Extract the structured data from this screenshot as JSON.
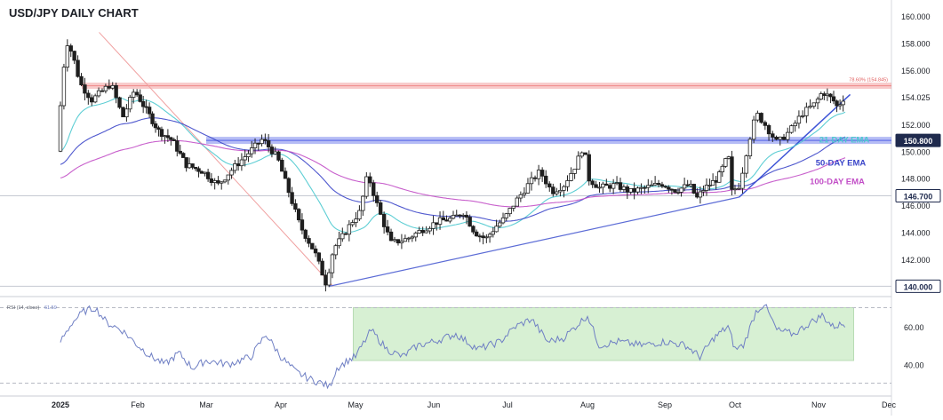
{
  "chart_data": {
    "type": "candlestick",
    "title": "USD/JPY DAILY CHART",
    "instrument": "USD/JPY",
    "timeframe": "Daily",
    "price_axis": {
      "ticks": [
        "160.000",
        "158.000",
        "156.000",
        "154.025",
        "152.000",
        "150.000",
        "148.000",
        "146.000",
        "144.000",
        "142.000",
        "140.000"
      ],
      "ylim": [
        139.5,
        160.8
      ]
    },
    "time_axis": {
      "ticks": [
        "2025",
        "Feb",
        "Mar",
        "Apr",
        "May",
        "Jun",
        "Jul",
        "Aug",
        "Sep",
        "Oct",
        "Nov",
        "Dec"
      ]
    },
    "horizontal_levels": [
      {
        "label": "150.800",
        "value": 150.8,
        "style": "zone",
        "color": "#5b6be8"
      },
      {
        "label": "146.700",
        "value": 146.7,
        "style": "line",
        "color": "#2b3a67"
      },
      {
        "label": "140.000",
        "value": 140.0,
        "style": "line",
        "color": "#2b3a67"
      },
      {
        "label": "78.60% (154.845)",
        "value": 154.845,
        "style": "zone",
        "color": "#f08a8a"
      }
    ],
    "series": [
      {
        "name": "21-DAY EMA",
        "color": "#4dc9cf"
      },
      {
        "name": "50-DAY EMA",
        "color": "#3c46c9"
      },
      {
        "name": "100-DAY EMA",
        "color": "#c24fc7"
      }
    ],
    "price_path": [
      {
        "x": 0.0,
        "y": 150.0
      },
      {
        "x": 0.06,
        "y": 154.5
      },
      {
        "x": 0.12,
        "y": 158.2
      },
      {
        "x": 0.2,
        "y": 157.2
      },
      {
        "x": 0.3,
        "y": 155.0
      },
      {
        "x": 0.45,
        "y": 153.8
      },
      {
        "x": 0.7,
        "y": 155.0
      },
      {
        "x": 0.85,
        "y": 152.5
      },
      {
        "x": 1.0,
        "y": 154.5
      },
      {
        "x": 1.15,
        "y": 153.2
      },
      {
        "x": 1.35,
        "y": 151.5
      },
      {
        "x": 1.55,
        "y": 150.8
      },
      {
        "x": 1.75,
        "y": 149.0
      },
      {
        "x": 2.0,
        "y": 148.5
      },
      {
        "x": 2.2,
        "y": 147.5
      },
      {
        "x": 2.4,
        "y": 148.7
      },
      {
        "x": 2.6,
        "y": 149.8
      },
      {
        "x": 2.8,
        "y": 150.9
      },
      {
        "x": 3.0,
        "y": 149.5
      },
      {
        "x": 3.15,
        "y": 147.0
      },
      {
        "x": 3.3,
        "y": 144.5
      },
      {
        "x": 3.5,
        "y": 142.5
      },
      {
        "x": 3.65,
        "y": 140.2
      },
      {
        "x": 3.75,
        "y": 142.8
      },
      {
        "x": 3.85,
        "y": 143.5
      },
      {
        "x": 4.0,
        "y": 144.8
      },
      {
        "x": 4.1,
        "y": 145.5
      },
      {
        "x": 4.2,
        "y": 148.3
      },
      {
        "x": 4.35,
        "y": 145.5
      },
      {
        "x": 4.5,
        "y": 143.2
      },
      {
        "x": 4.7,
        "y": 143.5
      },
      {
        "x": 4.9,
        "y": 144.2
      },
      {
        "x": 5.1,
        "y": 144.8
      },
      {
        "x": 5.3,
        "y": 145.0
      },
      {
        "x": 5.45,
        "y": 145.5
      },
      {
        "x": 5.6,
        "y": 144.0
      },
      {
        "x": 5.75,
        "y": 143.5
      },
      {
        "x": 5.9,
        "y": 144.5
      },
      {
        "x": 6.0,
        "y": 145.0
      },
      {
        "x": 6.15,
        "y": 146.3
      },
      {
        "x": 6.3,
        "y": 147.5
      },
      {
        "x": 6.45,
        "y": 148.5
      },
      {
        "x": 6.6,
        "y": 147.0
      },
      {
        "x": 6.75,
        "y": 147.5
      },
      {
        "x": 6.9,
        "y": 149.0
      },
      {
        "x": 7.0,
        "y": 150.5
      },
      {
        "x": 7.05,
        "y": 148.0
      },
      {
        "x": 7.2,
        "y": 147.3
      },
      {
        "x": 7.4,
        "y": 147.5
      },
      {
        "x": 7.6,
        "y": 147.0
      },
      {
        "x": 7.8,
        "y": 147.3
      },
      {
        "x": 8.0,
        "y": 147.6
      },
      {
        "x": 8.2,
        "y": 147.1
      },
      {
        "x": 8.4,
        "y": 147.5
      },
      {
        "x": 8.5,
        "y": 146.5
      },
      {
        "x": 8.6,
        "y": 147.2
      },
      {
        "x": 8.8,
        "y": 148.0
      },
      {
        "x": 8.95,
        "y": 149.7
      },
      {
        "x": 9.0,
        "y": 147.0
      },
      {
        "x": 9.1,
        "y": 147.5
      },
      {
        "x": 9.2,
        "y": 150.5
      },
      {
        "x": 9.3,
        "y": 152.8
      },
      {
        "x": 9.4,
        "y": 152.0
      },
      {
        "x": 9.55,
        "y": 150.6
      },
      {
        "x": 9.7,
        "y": 151.5
      },
      {
        "x": 9.85,
        "y": 152.8
      },
      {
        "x": 10.0,
        "y": 153.5
      },
      {
        "x": 10.1,
        "y": 154.4
      },
      {
        "x": 10.25,
        "y": 153.8
      },
      {
        "x": 10.32,
        "y": 153.2
      },
      {
        "x": 10.38,
        "y": 153.9
      }
    ],
    "rsi": {
      "label": "RSI (14, close)",
      "value": "61.59",
      "ticks": [
        "60.00",
        "40.00"
      ],
      "levels": [
        70,
        30
      ],
      "ylim": [
        26,
        74
      ],
      "zone_label": "",
      "path": [
        {
          "x": 0.0,
          "y": 52
        },
        {
          "x": 0.15,
          "y": 62
        },
        {
          "x": 0.3,
          "y": 68
        },
        {
          "x": 0.45,
          "y": 70
        },
        {
          "x": 0.6,
          "y": 62
        },
        {
          "x": 0.8,
          "y": 58
        },
        {
          "x": 1.0,
          "y": 50
        },
        {
          "x": 1.2,
          "y": 44
        },
        {
          "x": 1.4,
          "y": 40
        },
        {
          "x": 1.6,
          "y": 46
        },
        {
          "x": 1.8,
          "y": 38
        },
        {
          "x": 2.0,
          "y": 42
        },
        {
          "x": 2.3,
          "y": 40
        },
        {
          "x": 2.6,
          "y": 44
        },
        {
          "x": 2.8,
          "y": 56
        },
        {
          "x": 3.0,
          "y": 44
        },
        {
          "x": 3.2,
          "y": 36
        },
        {
          "x": 3.4,
          "y": 32
        },
        {
          "x": 3.55,
          "y": 30
        },
        {
          "x": 3.65,
          "y": 28
        },
        {
          "x": 3.75,
          "y": 38
        },
        {
          "x": 3.9,
          "y": 42
        },
        {
          "x": 4.0,
          "y": 44
        },
        {
          "x": 4.2,
          "y": 58
        },
        {
          "x": 4.4,
          "y": 48
        },
        {
          "x": 4.6,
          "y": 44
        },
        {
          "x": 4.8,
          "y": 50
        },
        {
          "x": 5.0,
          "y": 52
        },
        {
          "x": 5.3,
          "y": 56
        },
        {
          "x": 5.6,
          "y": 48
        },
        {
          "x": 5.9,
          "y": 52
        },
        {
          "x": 6.1,
          "y": 60
        },
        {
          "x": 6.3,
          "y": 64
        },
        {
          "x": 6.5,
          "y": 52
        },
        {
          "x": 6.7,
          "y": 54
        },
        {
          "x": 6.9,
          "y": 62
        },
        {
          "x": 7.0,
          "y": 66
        },
        {
          "x": 7.15,
          "y": 50
        },
        {
          "x": 7.4,
          "y": 52
        },
        {
          "x": 7.7,
          "y": 50
        },
        {
          "x": 8.0,
          "y": 52
        },
        {
          "x": 8.3,
          "y": 50
        },
        {
          "x": 8.5,
          "y": 44
        },
        {
          "x": 8.7,
          "y": 54
        },
        {
          "x": 8.9,
          "y": 60
        },
        {
          "x": 9.0,
          "y": 48
        },
        {
          "x": 9.1,
          "y": 50
        },
        {
          "x": 9.25,
          "y": 68
        },
        {
          "x": 9.35,
          "y": 72
        },
        {
          "x": 9.5,
          "y": 58
        },
        {
          "x": 9.7,
          "y": 56
        },
        {
          "x": 9.9,
          "y": 62
        },
        {
          "x": 10.05,
          "y": 66
        },
        {
          "x": 10.2,
          "y": 60
        },
        {
          "x": 10.38,
          "y": 61.6
        }
      ]
    }
  }
}
